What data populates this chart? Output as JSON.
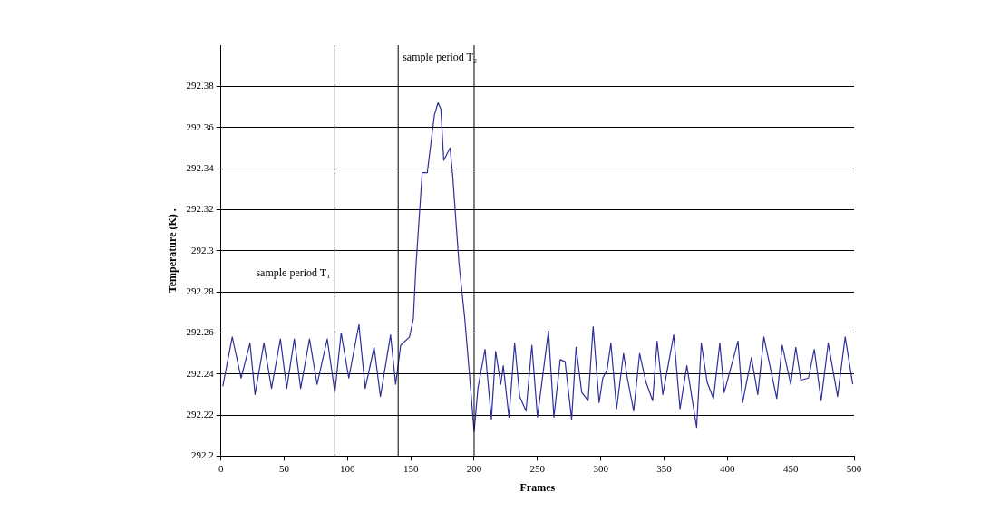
{
  "chart_data": {
    "type": "line",
    "xlabel": "Frames",
    "ylabel": "Temperature (K) .",
    "xlim": [
      0,
      500
    ],
    "xticks": [
      0,
      50,
      100,
      150,
      200,
      250,
      300,
      350,
      400,
      450,
      500
    ],
    "ylim": [
      292.2,
      292.4
    ],
    "yticks": [
      292.2,
      292.22,
      292.24,
      292.26,
      292.28,
      292.3,
      292.32,
      292.34,
      292.36,
      292.38
    ],
    "grid": "y",
    "marker": "none",
    "line_style": "solid",
    "ref_lines": [
      {
        "axis": "x",
        "value": 90,
        "label": "sample period T₁"
      },
      {
        "axis": "x",
        "value": 140,
        "label": "sample period T₂"
      },
      {
        "axis": "x",
        "value": 200
      }
    ],
    "series": [
      {
        "color": "#2e2e99",
        "x": [
          1.5,
          9,
          16,
          23,
          27,
          34,
          40,
          47,
          52,
          58,
          63,
          70,
          76,
          84,
          90,
          95,
          101,
          109,
          114,
          121,
          126,
          134,
          138,
          142,
          149,
          152,
          154,
          159,
          163,
          168.6,
          171.5,
          173.7,
          176,
          181,
          183,
          188,
          192.6,
          196,
          200,
          203,
          208.6,
          213.6,
          217,
          221,
          223,
          227.5,
          232,
          236,
          241,
          245.6,
          250,
          258.7,
          263,
          268,
          271.8,
          277,
          280.5,
          285,
          290,
          294,
          298.7,
          301.6,
          305,
          308,
          312.5,
          318,
          321,
          326,
          330.7,
          335.7,
          341,
          344.5,
          349,
          357.6,
          362.6,
          368,
          375.7,
          379.4,
          384,
          389,
          394,
          397.5,
          408.4,
          412,
          419,
          424,
          428.8,
          439,
          443.3,
          450,
          454,
          458,
          464,
          468.6,
          474,
          479.6,
          487,
          493,
          499
        ],
        "values": [
          292.234,
          292.258,
          292.238,
          292.255,
          292.23,
          292.255,
          292.233,
          292.257,
          292.233,
          292.257,
          292.233,
          292.257,
          292.235,
          292.257,
          292.231,
          292.26,
          292.238,
          292.264,
          292.233,
          292.253,
          292.229,
          292.259,
          292.235,
          292.254,
          292.258,
          292.267,
          292.292,
          292.338,
          292.338,
          292.366,
          292.372,
          292.369,
          292.344,
          292.35,
          292.337,
          292.294,
          292.267,
          292.242,
          292.212,
          292.233,
          292.252,
          292.218,
          292.251,
          292.235,
          292.244,
          292.219,
          292.255,
          292.229,
          292.222,
          292.254,
          292.219,
          292.261,
          292.219,
          292.247,
          292.246,
          292.218,
          292.253,
          292.231,
          292.227,
          292.263,
          292.226,
          292.238,
          292.242,
          292.255,
          292.223,
          292.25,
          292.238,
          292.222,
          292.25,
          292.236,
          292.227,
          292.256,
          292.23,
          292.259,
          292.223,
          292.244,
          292.214,
          292.255,
          292.236,
          292.228,
          292.255,
          292.231,
          292.256,
          292.226,
          292.248,
          292.23,
          292.258,
          292.228,
          292.254,
          292.235,
          292.253,
          292.237,
          292.238,
          292.252,
          292.227,
          292.255,
          292.229,
          292.258,
          292.235
        ]
      }
    ]
  }
}
